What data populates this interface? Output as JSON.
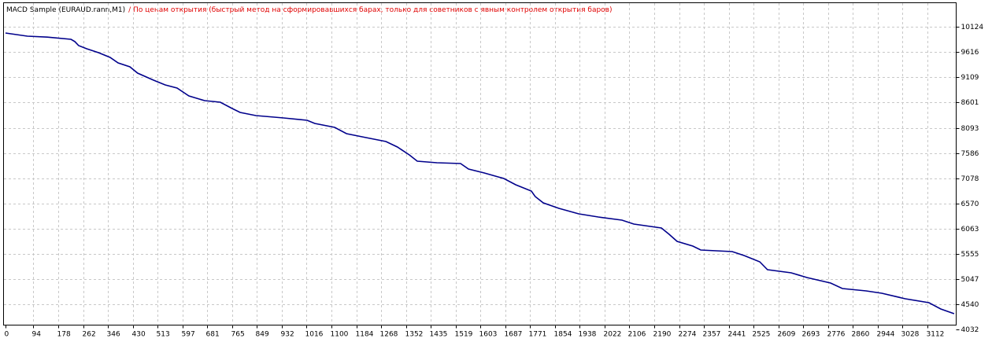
{
  "chart_data": {
    "type": "line",
    "title": "MACD Sample (EURAUD.rann,M1)",
    "subtitle": "/ По ценам открытия (быстрый метод на сформировавшихся барах, только для советников с явным контролем открытия баров)",
    "x": [
      0,
      74,
      141,
      221,
      234,
      247,
      274,
      314,
      353,
      380,
      420,
      446,
      500,
      539,
      579,
      619,
      672,
      725,
      765,
      792,
      845,
      938,
      1018,
      1044,
      1111,
      1151,
      1217,
      1284,
      1323,
      1363,
      1390,
      1456,
      1536,
      1563,
      1616,
      1682,
      1722,
      1775,
      1788,
      1815,
      1868,
      1935,
      2001,
      2081,
      2121,
      2214,
      2240,
      2267,
      2320,
      2347,
      2453,
      2493,
      2546,
      2572,
      2652,
      2705,
      2785,
      2825,
      2905,
      2958,
      3037,
      3117,
      3157,
      3202
    ],
    "values": [
      10002,
      9939,
      9920,
      9876,
      9830,
      9749,
      9686,
      9607,
      9511,
      9400,
      9321,
      9195,
      9052,
      8957,
      8894,
      8735,
      8640,
      8609,
      8482,
      8403,
      8339,
      8292,
      8245,
      8181,
      8102,
      7976,
      7896,
      7817,
      7706,
      7548,
      7421,
      7390,
      7374,
      7263,
      7183,
      7073,
      6946,
      6819,
      6708,
      6582,
      6471,
      6360,
      6297,
      6233,
      6154,
      6075,
      5948,
      5806,
      5711,
      5631,
      5600,
      5520,
      5394,
      5235,
      5172,
      5077,
      4966,
      4855,
      4808,
      4760,
      4649,
      4570,
      4444,
      4349
    ],
    "color": "#00008b",
    "xlim": [
      0,
      3210
    ],
    "xticks": [
      0,
      94,
      178,
      262,
      346,
      430,
      513,
      597,
      681,
      765,
      849,
      932,
      1016,
      1100,
      1184,
      1268,
      1352,
      1435,
      1519,
      1603,
      1687,
      1771,
      1854,
      1938,
      2022,
      2106,
      2190,
      2274,
      2357,
      2441,
      2525,
      2609,
      2693,
      2776,
      2860,
      2944,
      3028,
      3112
    ],
    "ylim": [
      4032,
      10620
    ],
    "yticks": [
      10124,
      9616,
      9109,
      8601,
      8093,
      7586,
      7078,
      6570,
      6063,
      5555,
      5047,
      4540,
      4032
    ],
    "grid": true
  }
}
